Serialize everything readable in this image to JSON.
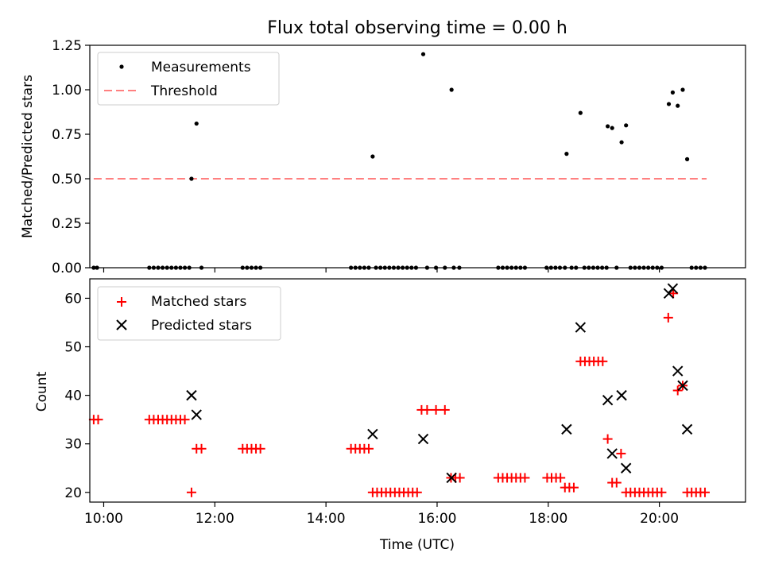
{
  "chart_data": [
    {
      "type": "scatter",
      "title": "Flux total observing time = 0.00 h",
      "xlabel": "",
      "ylabel": "Matched/Predicted stars",
      "xlim": [
        9.75,
        21.55
      ],
      "ylim": [
        0,
        1.25
      ],
      "yticks": [
        0,
        0.25,
        0.5,
        0.75,
        1.0,
        1.25
      ],
      "ytick_labels": [
        "0.00",
        "0.25",
        "0.50",
        "0.75",
        "1.00",
        "1.25"
      ],
      "legend_position": "top-left",
      "series": [
        {
          "name": "Measurements",
          "marker": "dot",
          "color": "#000000",
          "points": [
            [
              9.82,
              0
            ],
            [
              9.88,
              0
            ],
            [
              10.82,
              0
            ],
            [
              10.9,
              0
            ],
            [
              10.98,
              0
            ],
            [
              11.06,
              0
            ],
            [
              11.14,
              0
            ],
            [
              11.22,
              0
            ],
            [
              11.3,
              0
            ],
            [
              11.38,
              0
            ],
            [
              11.46,
              0
            ],
            [
              11.54,
              0
            ],
            [
              11.58,
              0.5
            ],
            [
              11.67,
              0.81
            ],
            [
              11.76,
              0
            ],
            [
              12.5,
              0
            ],
            [
              12.58,
              0
            ],
            [
              12.66,
              0
            ],
            [
              12.74,
              0
            ],
            [
              12.82,
              0
            ],
            [
              14.45,
              0
            ],
            [
              14.53,
              0
            ],
            [
              14.61,
              0
            ],
            [
              14.69,
              0
            ],
            [
              14.77,
              0
            ],
            [
              14.84,
              0.625
            ],
            [
              14.9,
              0
            ],
            [
              14.98,
              0
            ],
            [
              15.06,
              0
            ],
            [
              15.14,
              0
            ],
            [
              15.22,
              0
            ],
            [
              15.3,
              0
            ],
            [
              15.38,
              0
            ],
            [
              15.46,
              0
            ],
            [
              15.54,
              0
            ],
            [
              15.62,
              0
            ],
            [
              15.75,
              1.2
            ],
            [
              15.82,
              0
            ],
            [
              15.98,
              0
            ],
            [
              16.14,
              0
            ],
            [
              16.26,
              1.0
            ],
            [
              16.3,
              0
            ],
            [
              16.4,
              0
            ],
            [
              17.1,
              0
            ],
            [
              17.18,
              0
            ],
            [
              17.26,
              0
            ],
            [
              17.34,
              0
            ],
            [
              17.42,
              0
            ],
            [
              17.5,
              0
            ],
            [
              17.58,
              0
            ],
            [
              17.97,
              0
            ],
            [
              18.05,
              0
            ],
            [
              18.13,
              0
            ],
            [
              18.21,
              0
            ],
            [
              18.3,
              0
            ],
            [
              18.33,
              0.64
            ],
            [
              18.42,
              0
            ],
            [
              18.5,
              0
            ],
            [
              18.58,
              0.87
            ],
            [
              18.65,
              0
            ],
            [
              18.73,
              0
            ],
            [
              18.81,
              0
            ],
            [
              18.89,
              0
            ],
            [
              18.97,
              0
            ],
            [
              19.05,
              0
            ],
            [
              19.07,
              0.795
            ],
            [
              19.15,
              0.785
            ],
            [
              19.23,
              0
            ],
            [
              19.32,
              0.705
            ],
            [
              19.4,
              0.8
            ],
            [
              19.48,
              0
            ],
            [
              19.56,
              0
            ],
            [
              19.64,
              0
            ],
            [
              19.72,
              0
            ],
            [
              19.8,
              0
            ],
            [
              19.88,
              0
            ],
            [
              19.96,
              0
            ],
            [
              20.04,
              0
            ],
            [
              20.17,
              0.92
            ],
            [
              20.24,
              0.985
            ],
            [
              20.33,
              0.91
            ],
            [
              20.42,
              1.0
            ],
            [
              20.5,
              0.61
            ],
            [
              20.58,
              0
            ],
            [
              20.66,
              0
            ],
            [
              20.74,
              0
            ],
            [
              20.82,
              0
            ]
          ]
        },
        {
          "name": "Threshold",
          "marker": "dashed-line",
          "color": "#ff8080",
          "x": [
            9.82,
            20.85
          ],
          "y": [
            0.5,
            0.5
          ]
        }
      ]
    },
    {
      "type": "scatter",
      "title": "",
      "xlabel": "Time (UTC)",
      "ylabel": "Count",
      "xlim": [
        9.75,
        21.55
      ],
      "ylim": [
        18,
        64
      ],
      "xticks": [
        10,
        12,
        14,
        16,
        18,
        20
      ],
      "xtick_labels": [
        "10:00",
        "12:00",
        "14:00",
        "16:00",
        "18:00",
        "20:00"
      ],
      "yticks": [
        20,
        30,
        40,
        50,
        60
      ],
      "ytick_labels": [
        "20",
        "30",
        "40",
        "50",
        "60"
      ],
      "legend_position": "top-left",
      "series": [
        {
          "name": "Matched stars",
          "marker": "plus",
          "color": "#ff0000",
          "points": [
            [
              9.82,
              35
            ],
            [
              9.9,
              35
            ],
            [
              10.82,
              35
            ],
            [
              10.9,
              35
            ],
            [
              10.98,
              35
            ],
            [
              11.06,
              35
            ],
            [
              11.14,
              35
            ],
            [
              11.22,
              35
            ],
            [
              11.3,
              35
            ],
            [
              11.38,
              35
            ],
            [
              11.46,
              35
            ],
            [
              11.58,
              20
            ],
            [
              11.67,
              29
            ],
            [
              11.76,
              29
            ],
            [
              12.5,
              29
            ],
            [
              12.58,
              29
            ],
            [
              12.66,
              29
            ],
            [
              12.74,
              29
            ],
            [
              12.82,
              29
            ],
            [
              14.45,
              29
            ],
            [
              14.53,
              29
            ],
            [
              14.61,
              29
            ],
            [
              14.69,
              29
            ],
            [
              14.77,
              29
            ],
            [
              14.84,
              20
            ],
            [
              14.92,
              20
            ],
            [
              15.0,
              20
            ],
            [
              15.08,
              20
            ],
            [
              15.16,
              20
            ],
            [
              15.24,
              20
            ],
            [
              15.32,
              20
            ],
            [
              15.4,
              20
            ],
            [
              15.48,
              20
            ],
            [
              15.56,
              20
            ],
            [
              15.64,
              20
            ],
            [
              15.72,
              37
            ],
            [
              15.82,
              37
            ],
            [
              15.98,
              37
            ],
            [
              16.14,
              37
            ],
            [
              16.25,
              23
            ],
            [
              16.33,
              23
            ],
            [
              16.41,
              23
            ],
            [
              17.1,
              23
            ],
            [
              17.18,
              23
            ],
            [
              17.26,
              23
            ],
            [
              17.34,
              23
            ],
            [
              17.42,
              23
            ],
            [
              17.5,
              23
            ],
            [
              17.58,
              23
            ],
            [
              17.98,
              23
            ],
            [
              18.06,
              23
            ],
            [
              18.14,
              23
            ],
            [
              18.22,
              23
            ],
            [
              18.3,
              21
            ],
            [
              18.38,
              21
            ],
            [
              18.46,
              21
            ],
            [
              18.58,
              47
            ],
            [
              18.66,
              47
            ],
            [
              18.74,
              47
            ],
            [
              18.82,
              47
            ],
            [
              18.9,
              47
            ],
            [
              18.98,
              47
            ],
            [
              19.07,
              31
            ],
            [
              19.15,
              22
            ],
            [
              19.23,
              22
            ],
            [
              19.31,
              28
            ],
            [
              19.4,
              20
            ],
            [
              19.48,
              20
            ],
            [
              19.56,
              20
            ],
            [
              19.64,
              20
            ],
            [
              19.72,
              20
            ],
            [
              19.8,
              20
            ],
            [
              19.88,
              20
            ],
            [
              19.96,
              20
            ],
            [
              20.04,
              20
            ],
            [
              20.16,
              56
            ],
            [
              20.25,
              61
            ],
            [
              20.33,
              41
            ],
            [
              20.42,
              42
            ],
            [
              20.5,
              20
            ],
            [
              20.58,
              20
            ],
            [
              20.66,
              20
            ],
            [
              20.74,
              20
            ],
            [
              20.82,
              20
            ]
          ]
        },
        {
          "name": "Predicted stars",
          "marker": "x",
          "color": "#000000",
          "points": [
            [
              11.58,
              40
            ],
            [
              11.67,
              36
            ],
            [
              14.84,
              32
            ],
            [
              15.75,
              31
            ],
            [
              16.26,
              23
            ],
            [
              18.33,
              33
            ],
            [
              18.58,
              54
            ],
            [
              19.07,
              39
            ],
            [
              19.15,
              28
            ],
            [
              19.32,
              40
            ],
            [
              19.4,
              25
            ],
            [
              20.17,
              61
            ],
            [
              20.24,
              62
            ],
            [
              20.33,
              45
            ],
            [
              20.42,
              42
            ],
            [
              20.5,
              33
            ]
          ]
        }
      ]
    }
  ]
}
